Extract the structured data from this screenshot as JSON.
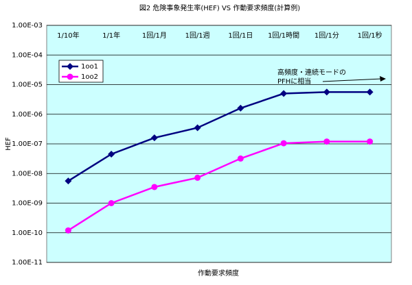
{
  "chart_data": {
    "type": "line",
    "title": "図2  危険事象発生率(HEF) VS 作動要求頻度(計算例)",
    "x_label": "作動要求頻度",
    "y_label": "HEF",
    "categories": [
      "1/10年",
      "1/1年",
      "1回/1月",
      "1回/1週",
      "1回/1日",
      "1回/1時間",
      "1回/1分",
      "1回/1秒"
    ],
    "series": [
      {
        "name": "1oo1",
        "color": "#000080",
        "marker": "diamond",
        "values": [
          5.6e-09,
          4.5e-08,
          1.6e-07,
          3.5e-07,
          1.6e-06,
          5e-06,
          5.6e-06,
          5.6e-06
        ]
      },
      {
        "name": "1oo2",
        "color": "#ff00ff",
        "marker": "circle",
        "values": [
          1.2e-10,
          1e-09,
          3.5e-09,
          7.2e-09,
          3.2e-08,
          1.05e-07,
          1.2e-07,
          1.2e-07
        ]
      }
    ],
    "ylog": true,
    "ylim": [
      1e-11,
      0.001
    ],
    "yticks": [
      {
        "value": 0.001,
        "label": "1.00E-03"
      },
      {
        "value": 0.0001,
        "label": "1.00E-04"
      },
      {
        "value": 1e-05,
        "label": "1.00E-05"
      },
      {
        "value": 1e-06,
        "label": "1.00E-06"
      },
      {
        "value": 1e-07,
        "label": "1.00E-07"
      },
      {
        "value": 1e-08,
        "label": "1.00E-08"
      },
      {
        "value": 1e-09,
        "label": "1.00E-09"
      },
      {
        "value": 1e-10,
        "label": "1.00E-10"
      },
      {
        "value": 1e-11,
        "label": "1.00E-11"
      }
    ],
    "grid": true,
    "legend": "upper left",
    "plot_background": "#ccffff",
    "annotation": [
      "高頻度・連続モードの",
      "PFHに相当"
    ]
  }
}
